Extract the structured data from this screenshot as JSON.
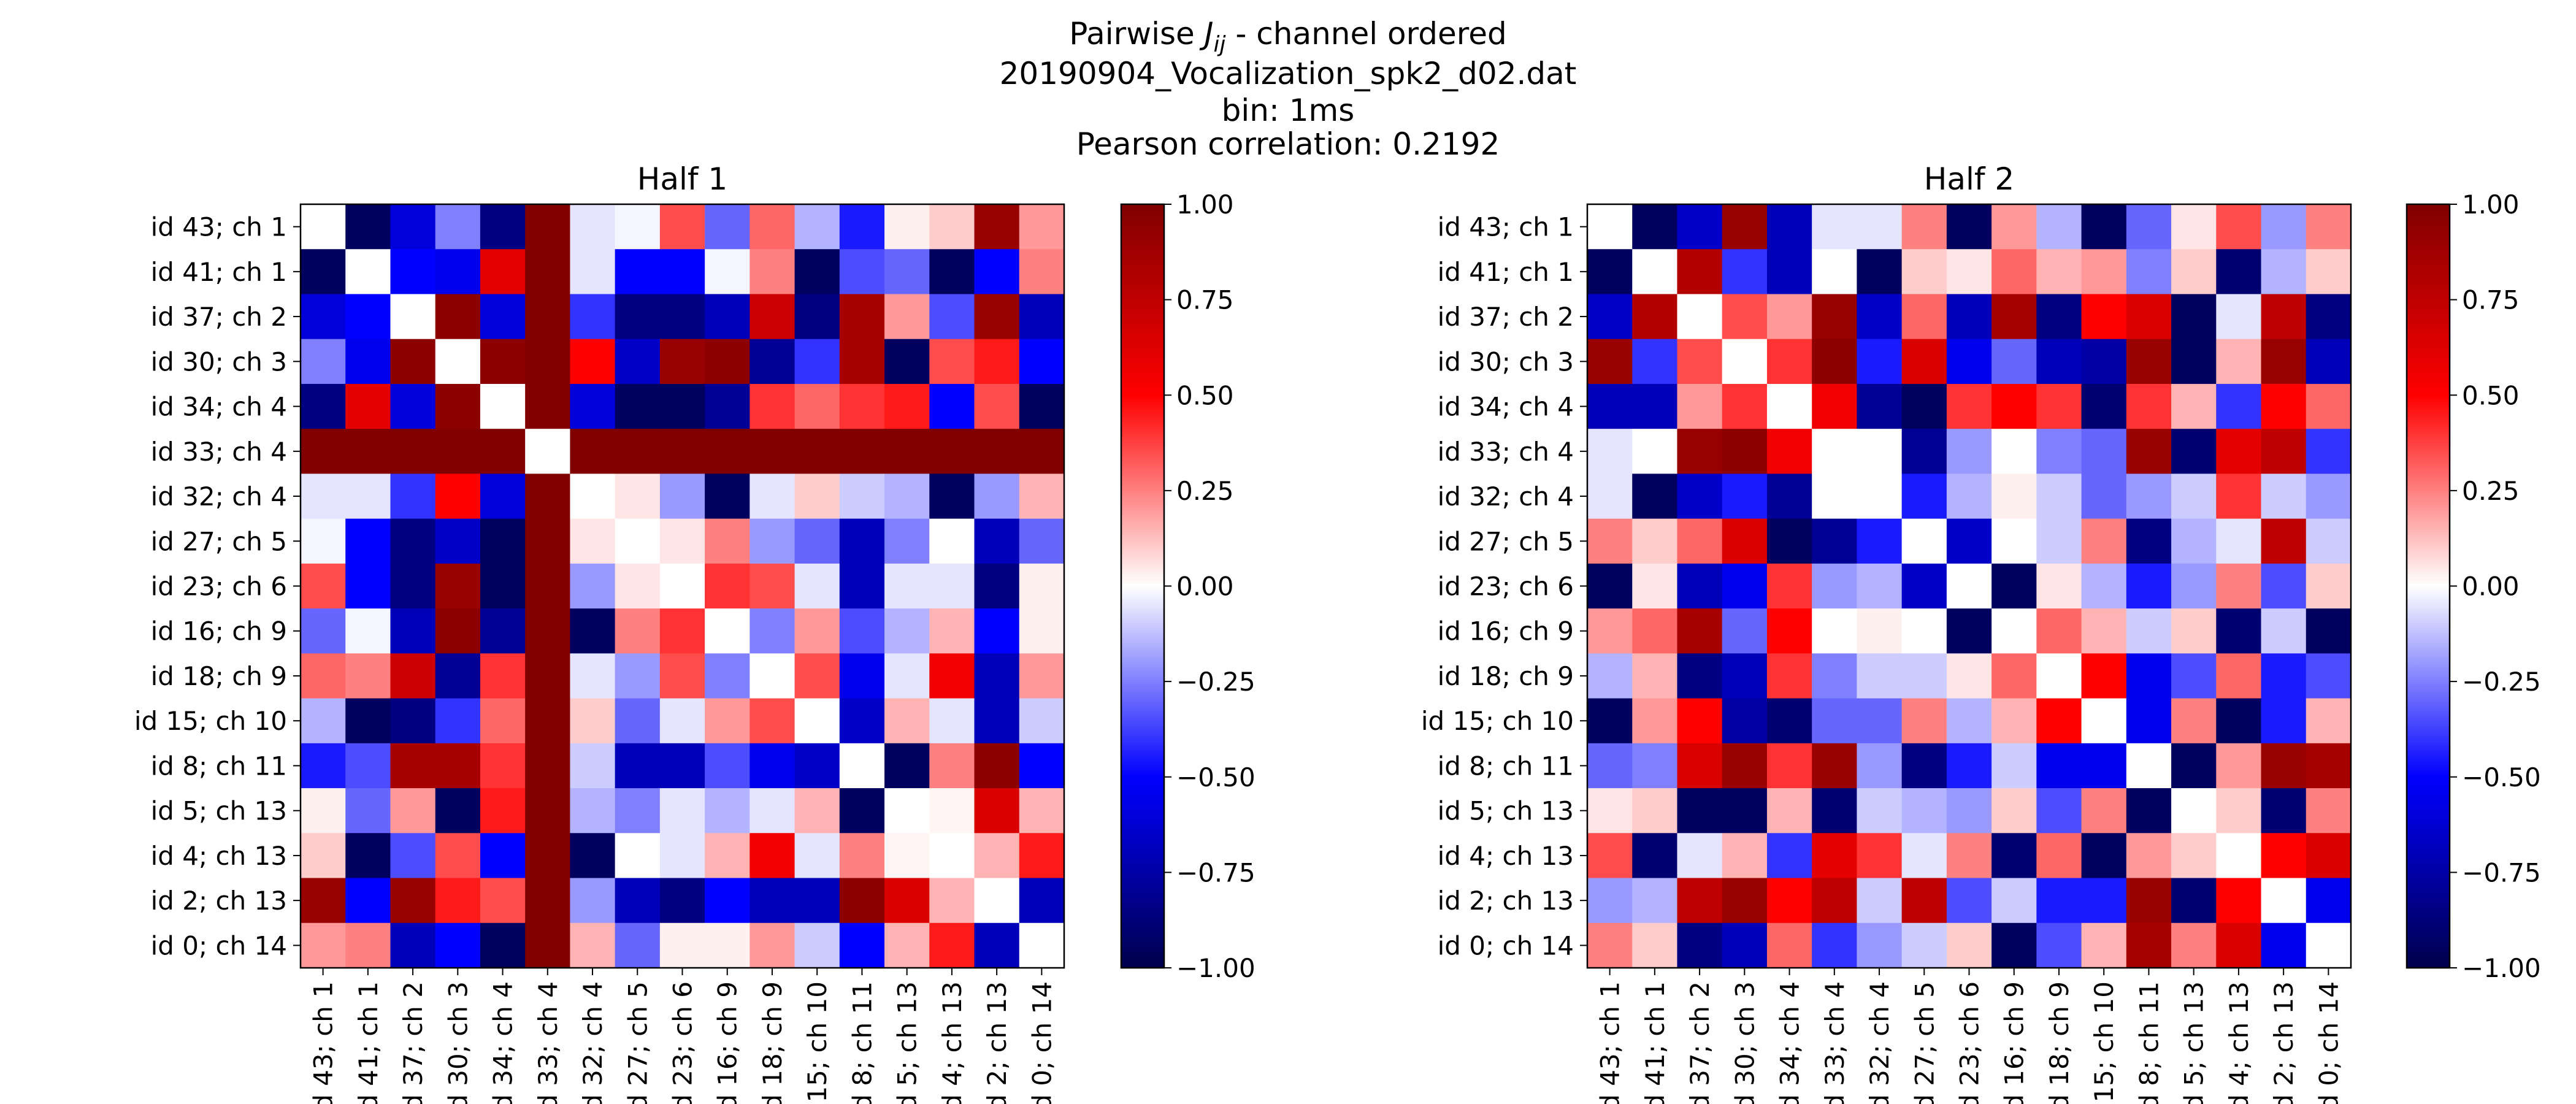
{
  "figure": {
    "suptitle": {
      "line1_prefix": "Pairwise ",
      "line1_symbol": "J",
      "line1_subscript": "ij",
      "line1_suffix": " - channel ordered",
      "line2": "20190904_Vocalization_spk2_d02.dat",
      "line3": "bin: 1ms",
      "line4": "Pearson correlation: 0.2192"
    }
  },
  "chart_data": [
    {
      "type": "heatmap",
      "title": "Half 1",
      "labels": [
        "id 43; ch 1",
        "id 41; ch 1",
        "id 37; ch 2",
        "id 30; ch 3",
        "id 34; ch 4",
        "id 33; ch 4",
        "id 32; ch 4",
        "id 27; ch 5",
        "id 23; ch 6",
        "id 16; ch 9",
        "id 18; ch 9",
        "id 15; ch 10",
        "id 8; ch 11",
        "id 5; ch 13",
        "id 4; ch 13",
        "id 2; ch 13",
        "id 0; ch 14"
      ],
      "colormap": "seismic",
      "vmin": -1.0,
      "vmax": 1.0,
      "colorbar_ticks": [
        "1.00",
        "0.75",
        "0.50",
        "0.25",
        "0.00",
        "−0.25",
        "−0.50",
        "−0.75",
        "−1.00"
      ],
      "matrix": [
        [
          0.0,
          -0.95,
          -0.6,
          -0.25,
          -0.85,
          1.0,
          -0.05,
          -0.02,
          0.35,
          -0.3,
          0.3,
          -0.15,
          -0.45,
          0.03,
          0.1,
          0.9,
          0.2
        ],
        [
          -0.95,
          0.0,
          -0.5,
          -0.55,
          0.6,
          1.0,
          -0.05,
          -0.5,
          -0.5,
          -0.02,
          0.25,
          -0.95,
          -0.35,
          -0.3,
          -0.95,
          -0.5,
          0.25
        ],
        [
          -0.6,
          -0.5,
          0.0,
          0.95,
          -0.6,
          1.0,
          -0.4,
          -0.85,
          -0.85,
          -0.7,
          0.7,
          -0.85,
          0.85,
          0.2,
          -0.35,
          0.9,
          -0.7
        ],
        [
          -0.25,
          -0.55,
          0.95,
          0.0,
          0.95,
          1.0,
          0.5,
          -0.65,
          0.9,
          0.95,
          -0.8,
          -0.4,
          0.85,
          -0.95,
          0.35,
          0.45,
          -0.5
        ],
        [
          -0.85,
          0.6,
          -0.6,
          0.95,
          0.0,
          1.0,
          -0.6,
          -0.95,
          -0.95,
          -0.8,
          0.4,
          0.3,
          0.4,
          0.45,
          -0.5,
          0.35,
          -0.95
        ],
        [
          1.0,
          1.0,
          1.0,
          1.0,
          1.0,
          0.0,
          1.0,
          1.0,
          1.0,
          1.0,
          1.0,
          1.0,
          1.0,
          1.0,
          1.0,
          1.0,
          1.0
        ],
        [
          -0.05,
          -0.05,
          -0.4,
          0.5,
          -0.6,
          1.0,
          0.0,
          0.05,
          -0.2,
          -0.95,
          -0.05,
          0.1,
          -0.1,
          -0.15,
          -0.95,
          -0.2,
          0.15
        ],
        [
          -0.02,
          -0.5,
          -0.85,
          -0.65,
          -0.95,
          1.0,
          0.05,
          0.0,
          0.05,
          0.25,
          -0.2,
          -0.3,
          -0.7,
          -0.25,
          0.0,
          -0.7,
          -0.3
        ],
        [
          0.35,
          -0.5,
          -0.85,
          0.9,
          -0.95,
          1.0,
          -0.2,
          0.05,
          0.0,
          0.4,
          0.35,
          -0.05,
          -0.7,
          -0.05,
          -0.05,
          -0.85,
          0.03
        ],
        [
          -0.3,
          -0.02,
          -0.7,
          0.95,
          -0.8,
          1.0,
          -0.95,
          0.25,
          0.4,
          0.0,
          -0.25,
          0.2,
          -0.35,
          -0.15,
          0.15,
          -0.5,
          0.03
        ],
        [
          0.3,
          0.25,
          0.7,
          -0.8,
          0.4,
          1.0,
          -0.05,
          -0.2,
          0.35,
          -0.25,
          0.0,
          0.35,
          -0.55,
          -0.05,
          0.55,
          -0.7,
          0.2
        ],
        [
          -0.15,
          -0.95,
          -0.85,
          -0.4,
          0.3,
          1.0,
          0.1,
          -0.3,
          -0.05,
          0.2,
          0.35,
          0.0,
          -0.65,
          0.15,
          -0.05,
          -0.7,
          -0.1
        ],
        [
          -0.45,
          -0.35,
          0.85,
          0.85,
          0.4,
          1.0,
          -0.1,
          -0.7,
          -0.7,
          -0.35,
          -0.55,
          -0.65,
          0.0,
          -0.95,
          0.25,
          0.95,
          -0.5
        ],
        [
          0.03,
          -0.3,
          0.2,
          -0.95,
          0.45,
          1.0,
          -0.15,
          -0.25,
          -0.05,
          -0.15,
          -0.05,
          0.15,
          -0.95,
          0.0,
          0.02,
          0.65,
          0.15
        ],
        [
          0.1,
          -0.95,
          -0.35,
          0.35,
          -0.5,
          1.0,
          -0.95,
          0.0,
          -0.05,
          0.15,
          0.55,
          -0.05,
          0.25,
          0.02,
          0.0,
          0.15,
          0.45
        ],
        [
          0.9,
          -0.5,
          0.9,
          0.45,
          0.35,
          1.0,
          -0.2,
          -0.7,
          -0.85,
          -0.5,
          -0.7,
          -0.7,
          0.95,
          0.65,
          0.15,
          0.0,
          -0.7
        ],
        [
          0.2,
          0.25,
          -0.7,
          -0.5,
          -0.95,
          1.0,
          0.15,
          -0.3,
          0.03,
          0.03,
          0.2,
          -0.1,
          -0.5,
          0.15,
          0.45,
          -0.7,
          0.0
        ]
      ]
    },
    {
      "type": "heatmap",
      "title": "Half 2",
      "labels": [
        "id 43; ch 1",
        "id 41; ch 1",
        "id 37; ch 2",
        "id 30; ch 3",
        "id 34; ch 4",
        "id 33; ch 4",
        "id 32; ch 4",
        "id 27; ch 5",
        "id 23; ch 6",
        "id 16; ch 9",
        "id 18; ch 9",
        "id 15; ch 10",
        "id 8; ch 11",
        "id 5; ch 13",
        "id 4; ch 13",
        "id 2; ch 13",
        "id 0; ch 14"
      ],
      "colormap": "seismic",
      "vmin": -1.0,
      "vmax": 1.0,
      "colorbar_ticks": [
        "1.00",
        "0.75",
        "0.50",
        "0.25",
        "0.00",
        "−0.25",
        "−0.50",
        "−0.75",
        "−1.00"
      ],
      "matrix": [
        [
          0.0,
          -0.95,
          -0.65,
          0.9,
          -0.7,
          -0.05,
          -0.05,
          0.25,
          -0.95,
          0.2,
          -0.15,
          -0.95,
          -0.3,
          0.05,
          0.35,
          -0.2,
          0.25
        ],
        [
          -0.95,
          0.0,
          0.8,
          -0.4,
          -0.7,
          0.0,
          -0.95,
          0.1,
          0.05,
          0.3,
          0.15,
          0.2,
          -0.25,
          0.1,
          -0.9,
          -0.15,
          0.1
        ],
        [
          -0.65,
          0.8,
          0.0,
          0.35,
          0.2,
          0.9,
          -0.65,
          0.3,
          -0.7,
          0.85,
          -0.85,
          0.5,
          0.65,
          -0.95,
          -0.05,
          0.75,
          -0.85
        ],
        [
          0.9,
          -0.4,
          0.35,
          0.0,
          0.4,
          0.95,
          -0.45,
          0.65,
          -0.55,
          -0.3,
          -0.7,
          -0.75,
          0.9,
          -0.95,
          0.15,
          0.9,
          -0.7
        ],
        [
          -0.7,
          -0.7,
          0.2,
          0.4,
          0.0,
          0.55,
          -0.8,
          -0.95,
          0.4,
          0.5,
          0.4,
          -0.9,
          0.4,
          0.15,
          -0.4,
          0.5,
          0.3
        ],
        [
          -0.05,
          0.0,
          0.9,
          0.95,
          0.55,
          0.0,
          0.0,
          -0.8,
          -0.2,
          0.0,
          -0.25,
          -0.3,
          0.9,
          -0.9,
          0.6,
          0.75,
          -0.4
        ],
        [
          -0.05,
          -0.95,
          -0.65,
          -0.45,
          -0.8,
          0.0,
          0.0,
          -0.45,
          -0.15,
          0.03,
          -0.1,
          -0.3,
          -0.2,
          -0.1,
          0.4,
          -0.1,
          -0.2
        ],
        [
          0.25,
          0.1,
          0.3,
          0.65,
          -0.95,
          -0.8,
          -0.45,
          0.0,
          -0.65,
          0.0,
          -0.1,
          0.25,
          -0.85,
          -0.15,
          -0.05,
          0.75,
          -0.1
        ],
        [
          -0.95,
          0.05,
          -0.7,
          -0.55,
          0.4,
          -0.2,
          -0.15,
          -0.65,
          0.0,
          -0.95,
          0.05,
          -0.15,
          -0.45,
          -0.2,
          0.25,
          -0.35,
          0.1
        ],
        [
          0.2,
          0.3,
          0.85,
          -0.3,
          0.5,
          0.0,
          0.03,
          0.0,
          -0.95,
          0.0,
          0.3,
          0.15,
          -0.1,
          0.1,
          -0.9,
          -0.1,
          -0.95
        ],
        [
          -0.15,
          0.15,
          -0.85,
          -0.7,
          0.4,
          -0.25,
          -0.1,
          -0.1,
          0.05,
          0.3,
          0.0,
          0.5,
          -0.55,
          -0.35,
          0.3,
          -0.45,
          -0.35
        ],
        [
          -0.95,
          0.2,
          0.5,
          -0.75,
          -0.9,
          -0.3,
          -0.3,
          0.25,
          -0.15,
          0.15,
          0.5,
          0.0,
          -0.55,
          0.25,
          -0.95,
          -0.45,
          0.15
        ],
        [
          -0.3,
          -0.25,
          0.65,
          0.9,
          0.4,
          0.9,
          -0.2,
          -0.85,
          -0.45,
          -0.1,
          -0.55,
          -0.55,
          0.0,
          -0.95,
          0.2,
          0.9,
          0.85
        ],
        [
          0.05,
          0.1,
          -0.95,
          -0.95,
          0.15,
          -0.9,
          -0.1,
          -0.15,
          -0.2,
          0.1,
          -0.35,
          0.25,
          -0.95,
          0.0,
          0.1,
          -0.9,
          0.25
        ],
        [
          0.35,
          -0.9,
          -0.05,
          0.15,
          -0.4,
          0.6,
          0.4,
          -0.05,
          0.25,
          -0.9,
          0.3,
          -0.95,
          0.2,
          0.1,
          0.0,
          0.5,
          0.65
        ],
        [
          -0.2,
          -0.15,
          0.75,
          0.9,
          0.5,
          0.75,
          -0.1,
          0.75,
          -0.35,
          -0.1,
          -0.45,
          -0.45,
          0.9,
          -0.9,
          0.5,
          0.0,
          -0.55
        ],
        [
          0.25,
          0.1,
          -0.85,
          -0.7,
          0.3,
          -0.4,
          -0.2,
          -0.1,
          0.1,
          -0.95,
          -0.35,
          0.15,
          0.85,
          0.25,
          0.65,
          -0.55,
          0.0
        ]
      ]
    }
  ]
}
